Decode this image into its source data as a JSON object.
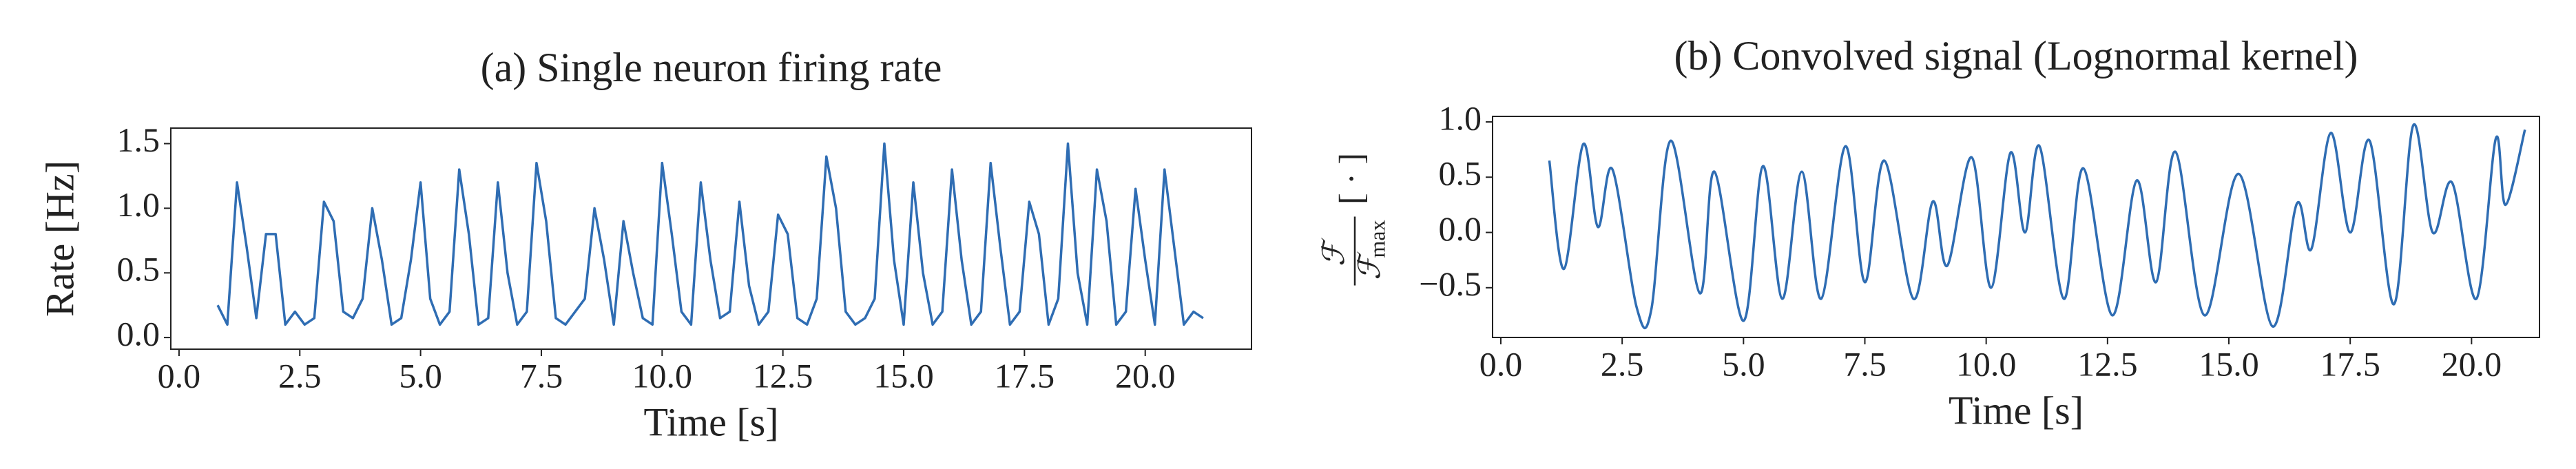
{
  "chart_data": [
    {
      "type": "line",
      "title": "(a) Single neuron firing rate",
      "xlabel": "Time [s]",
      "ylabel": "Rate [Hz]",
      "x": [
        0.8,
        1.0,
        1.2,
        1.4,
        1.6,
        1.8,
        2.0,
        2.2,
        2.4,
        2.6,
        2.8,
        3.0,
        3.2,
        3.4,
        3.6,
        3.8,
        4.0,
        4.2,
        4.4,
        4.6,
        4.8,
        5.0,
        5.2,
        5.4,
        5.6,
        5.8,
        6.0,
        6.2,
        6.4,
        6.6,
        6.8,
        7.0,
        7.2,
        7.4,
        7.6,
        7.8,
        8.0,
        8.2,
        8.4,
        8.6,
        8.8,
        9.0,
        9.2,
        9.4,
        9.6,
        9.8,
        10.0,
        10.2,
        10.4,
        10.6,
        10.8,
        11.0,
        11.2,
        11.4,
        11.6,
        11.8,
        12.0,
        12.2,
        12.4,
        12.6,
        12.8,
        13.0,
        13.2,
        13.4,
        13.6,
        13.8,
        14.0,
        14.2,
        14.4,
        14.6,
        14.8,
        15.0,
        15.2,
        15.4,
        15.6,
        15.8,
        16.0,
        16.2,
        16.4,
        16.6,
        16.8,
        17.0,
        17.2,
        17.4,
        17.6,
        17.8,
        18.0,
        18.2,
        18.4,
        18.6,
        18.8,
        19.0,
        19.2,
        19.4,
        19.6,
        19.8,
        20.0,
        20.2,
        20.4,
        20.6,
        20.8,
        21.0,
        21.2
      ],
      "series": [
        {
          "color": "#2f6db3",
          "values": [
            0.25,
            0.1,
            1.2,
            0.7,
            0.15,
            0.8,
            0.8,
            0.1,
            0.2,
            0.1,
            0.15,
            1.05,
            0.9,
            0.2,
            0.15,
            0.3,
            1.0,
            0.6,
            0.1,
            0.15,
            0.6,
            1.2,
            0.3,
            0.1,
            0.2,
            1.3,
            0.8,
            0.1,
            0.15,
            1.2,
            0.5,
            0.1,
            0.2,
            1.35,
            0.9,
            0.15,
            0.1,
            0.2,
            0.3,
            1.0,
            0.6,
            0.1,
            0.9,
            0.5,
            0.15,
            0.1,
            1.35,
            0.8,
            0.2,
            0.1,
            1.2,
            0.6,
            0.15,
            0.2,
            1.05,
            0.4,
            0.1,
            0.2,
            0.95,
            0.8,
            0.15,
            0.1,
            0.3,
            1.4,
            1.0,
            0.2,
            0.1,
            0.15,
            0.3,
            1.5,
            0.6,
            0.1,
            1.2,
            0.5,
            0.1,
            0.2,
            1.3,
            0.6,
            0.1,
            0.2,
            1.35,
            0.7,
            0.1,
            0.2,
            1.05,
            0.8,
            0.1,
            0.3,
            1.5,
            0.5,
            0.1,
            1.3,
            0.9,
            0.1,
            0.2,
            1.15,
            0.6,
            0.1,
            1.3,
            0.7,
            0.1,
            0.2,
            0.15
          ]
        }
      ],
      "xlim": [
        -0.17,
        22.2
      ],
      "ylim": [
        -0.09,
        1.62
      ],
      "xticks": [
        {
          "value": 0,
          "label": "0.0"
        },
        {
          "value": 2.5,
          "label": "2.5"
        },
        {
          "value": 5,
          "label": "5.0"
        },
        {
          "value": 7.5,
          "label": "7.5"
        },
        {
          "value": 10,
          "label": "10.0"
        },
        {
          "value": 12.5,
          "label": "12.5"
        },
        {
          "value": 15,
          "label": "15.0"
        },
        {
          "value": 17.5,
          "label": "17.5"
        },
        {
          "value": 20,
          "label": "20.0"
        }
      ],
      "yticks": [
        {
          "value": 0,
          "label": "0.0"
        },
        {
          "value": 0.5,
          "label": "0.5"
        },
        {
          "value": 1,
          "label": "1.0"
        },
        {
          "value": 1.5,
          "label": "1.5"
        }
      ]
    },
    {
      "type": "line",
      "title": "(b) Convolved signal (Lognormal kernel)",
      "xlabel": "Time [s]",
      "ylabel_parts": {
        "numerator": "ℱ",
        "denominator": "ℱ",
        "subscript": "max",
        "unit": "[ · ]"
      },
      "interpolation": "smooth",
      "x": [
        1.0,
        1.3,
        1.7,
        2.0,
        2.3,
        2.8,
        3.1,
        3.5,
        4.1,
        4.4,
        5.0,
        5.4,
        5.8,
        6.2,
        6.6,
        7.1,
        7.5,
        7.9,
        8.5,
        8.9,
        9.2,
        9.7,
        10.1,
        10.5,
        10.8,
        11.1,
        11.6,
        12.0,
        12.6,
        13.1,
        13.5,
        13.9,
        14.5,
        15.2,
        15.9,
        16.4,
        16.7,
        17.1,
        17.5,
        17.9,
        18.4,
        18.8,
        19.2,
        19.6,
        20.1,
        20.5,
        20.7,
        21.1
      ],
      "series": [
        {
          "color": "#2f6db3",
          "values": [
            0.65,
            -0.33,
            0.8,
            0.05,
            0.57,
            -0.68,
            -0.7,
            0.83,
            -0.55,
            0.55,
            -0.8,
            0.6,
            -0.6,
            0.55,
            -0.6,
            0.78,
            -0.45,
            0.65,
            -0.6,
            0.28,
            -0.3,
            0.68,
            -0.5,
            0.72,
            0.0,
            0.78,
            -0.6,
            0.58,
            -0.75,
            0.47,
            -0.45,
            0.73,
            -0.75,
            0.53,
            -0.85,
            0.26,
            -0.15,
            0.9,
            0.0,
            0.83,
            -0.65,
            0.97,
            0.0,
            0.45,
            -0.6,
            0.85,
            0.25,
            0.93
          ]
        }
      ],
      "xlim": [
        -0.17,
        21.4
      ],
      "ylim": [
        -0.95,
        1.05
      ],
      "xticks": [
        {
          "value": 0,
          "label": "0.0"
        },
        {
          "value": 2.5,
          "label": "2.5"
        },
        {
          "value": 5,
          "label": "5.0"
        },
        {
          "value": 7.5,
          "label": "7.5"
        },
        {
          "value": 10,
          "label": "10.0"
        },
        {
          "value": 12.5,
          "label": "12.5"
        },
        {
          "value": 15,
          "label": "15.0"
        },
        {
          "value": 17.5,
          "label": "17.5"
        },
        {
          "value": 20,
          "label": "20.0"
        }
      ],
      "yticks": [
        {
          "value": -0.5,
          "label": "−0.5"
        },
        {
          "value": 0,
          "label": "0.0"
        },
        {
          "value": 0.5,
          "label": "0.5"
        },
        {
          "value": 1,
          "label": "1.0"
        }
      ]
    }
  ]
}
